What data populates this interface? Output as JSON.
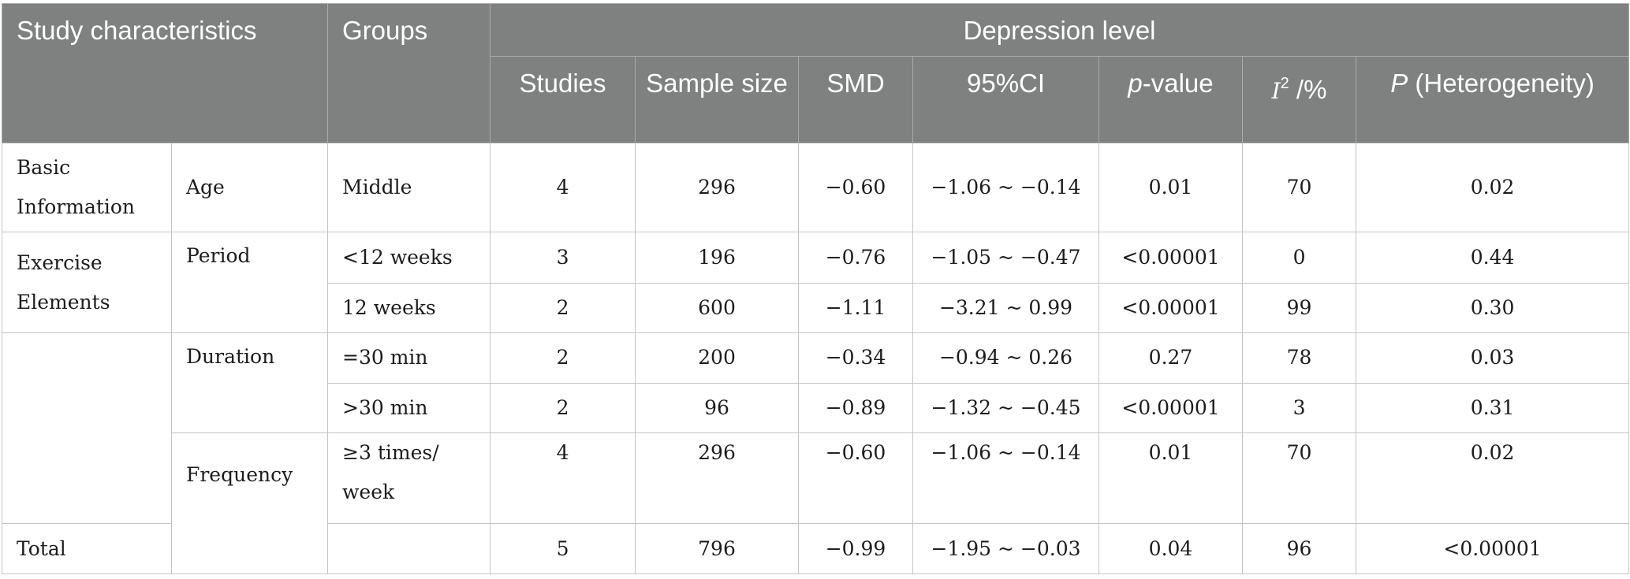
{
  "header": {
    "study_characteristics": "Study characteristics",
    "groups": "Groups",
    "depression_level": "Depression level",
    "studies": "Studies",
    "sample_size": "Sample size",
    "smd": "SMD",
    "ci": "95%CI",
    "p_value_italic": "p",
    "p_value_rest": "-value",
    "i2_letter": "I",
    "i2_sup": "2",
    "i2_rest": " /%",
    "p_het_italic": "P",
    "p_het_rest": " (Heterogeneity)"
  },
  "categories": {
    "basic_information": "Basic Information",
    "exercise_elements": "Exercise Elements",
    "total": "Total"
  },
  "subcategories": {
    "age": "Age",
    "period": "Period",
    "duration": "Duration",
    "frequency": "Frequency"
  },
  "rows": [
    {
      "group": "Middle",
      "studies": "4",
      "sample_size": "296",
      "smd": "−0.60",
      "ci": "−1.06 ~ −0.14",
      "p_value": "0.01",
      "i2": "70",
      "p_het": "0.02"
    },
    {
      "group": "<12 weeks",
      "studies": "3",
      "sample_size": "196",
      "smd": "−0.76",
      "ci": "−1.05 ~ −0.47",
      "p_value": "<0.00001",
      "i2": "0",
      "p_het": "0.44"
    },
    {
      "group": "12 weeks",
      "studies": "2",
      "sample_size": "600",
      "smd": "−1.11",
      "ci": "−3.21 ~ 0.99",
      "p_value": "<0.00001",
      "i2": "99",
      "p_het": "0.30"
    },
    {
      "group": "=30 min",
      "studies": "2",
      "sample_size": "200",
      "smd": "−0.34",
      "ci": "−0.94 ~ 0.26",
      "p_value": "0.27",
      "i2": "78",
      "p_het": "0.03"
    },
    {
      "group": ">30 min",
      "studies": "2",
      "sample_size": "96",
      "smd": "−0.89",
      "ci": "−1.32 ~ −0.45",
      "p_value": "<0.00001",
      "i2": "3",
      "p_het": "0.31"
    },
    {
      "group": "≥3 times/ week",
      "studies": "4",
      "sample_size": "296",
      "smd": "−0.60",
      "ci": "−1.06 ~ −0.14",
      "p_value": "0.01",
      "i2": "70",
      "p_het": "0.02"
    },
    {
      "group": "",
      "studies": "5",
      "sample_size": "796",
      "smd": "−0.99",
      "ci": "−1.95 ~ −0.03",
      "p_value": "0.04",
      "i2": "96",
      "p_het": "<0.00001"
    }
  ]
}
